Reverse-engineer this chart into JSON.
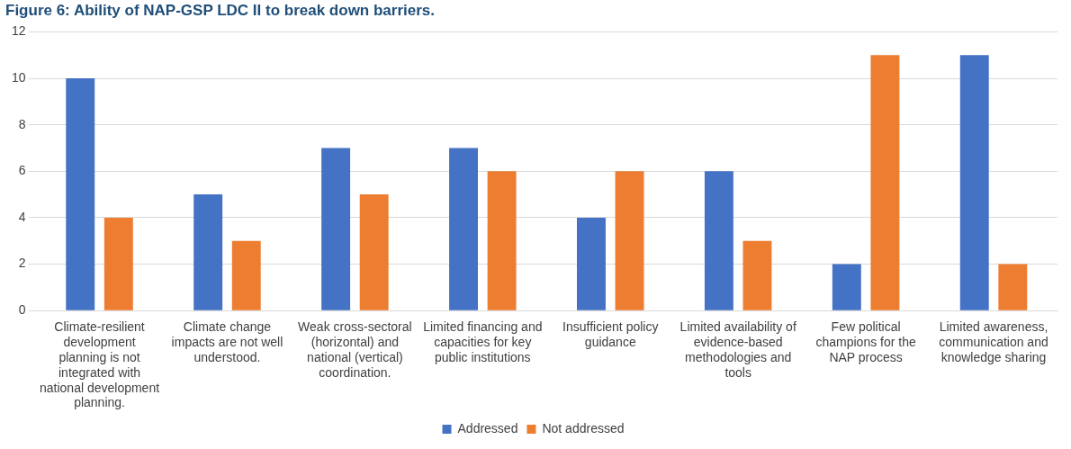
{
  "chart_data": {
    "type": "bar",
    "title": "Figure 6: Ability of NAP-GSP LDC II to break down barriers.",
    "categories": [
      "Climate-resilient development planning is not integrated with national development planning.",
      "Climate change impacts are not well understood.",
      "Weak cross-sectoral (horizontal) and national (vertical) coordination.",
      "Limited financing and capacities for key public institutions",
      "Insufficient policy guidance",
      "Limited availability of evidence-based methodologies and tools",
      "Few political champions for the NAP process",
      "Limited awareness, communication and knowledge sharing"
    ],
    "series": [
      {
        "name": "Addressed",
        "color": "#4472c4",
        "values": [
          10,
          5,
          7,
          7,
          4,
          6,
          2,
          11
        ]
      },
      {
        "name": "Not addressed",
        "color": "#ed7d31",
        "values": [
          4,
          3,
          5,
          6,
          6,
          3,
          11,
          2
        ]
      }
    ],
    "ylim": [
      0,
      12
    ],
    "yticks": [
      0,
      2,
      4,
      6,
      8,
      10,
      12
    ],
    "grid": "y",
    "legend": "bottom"
  }
}
